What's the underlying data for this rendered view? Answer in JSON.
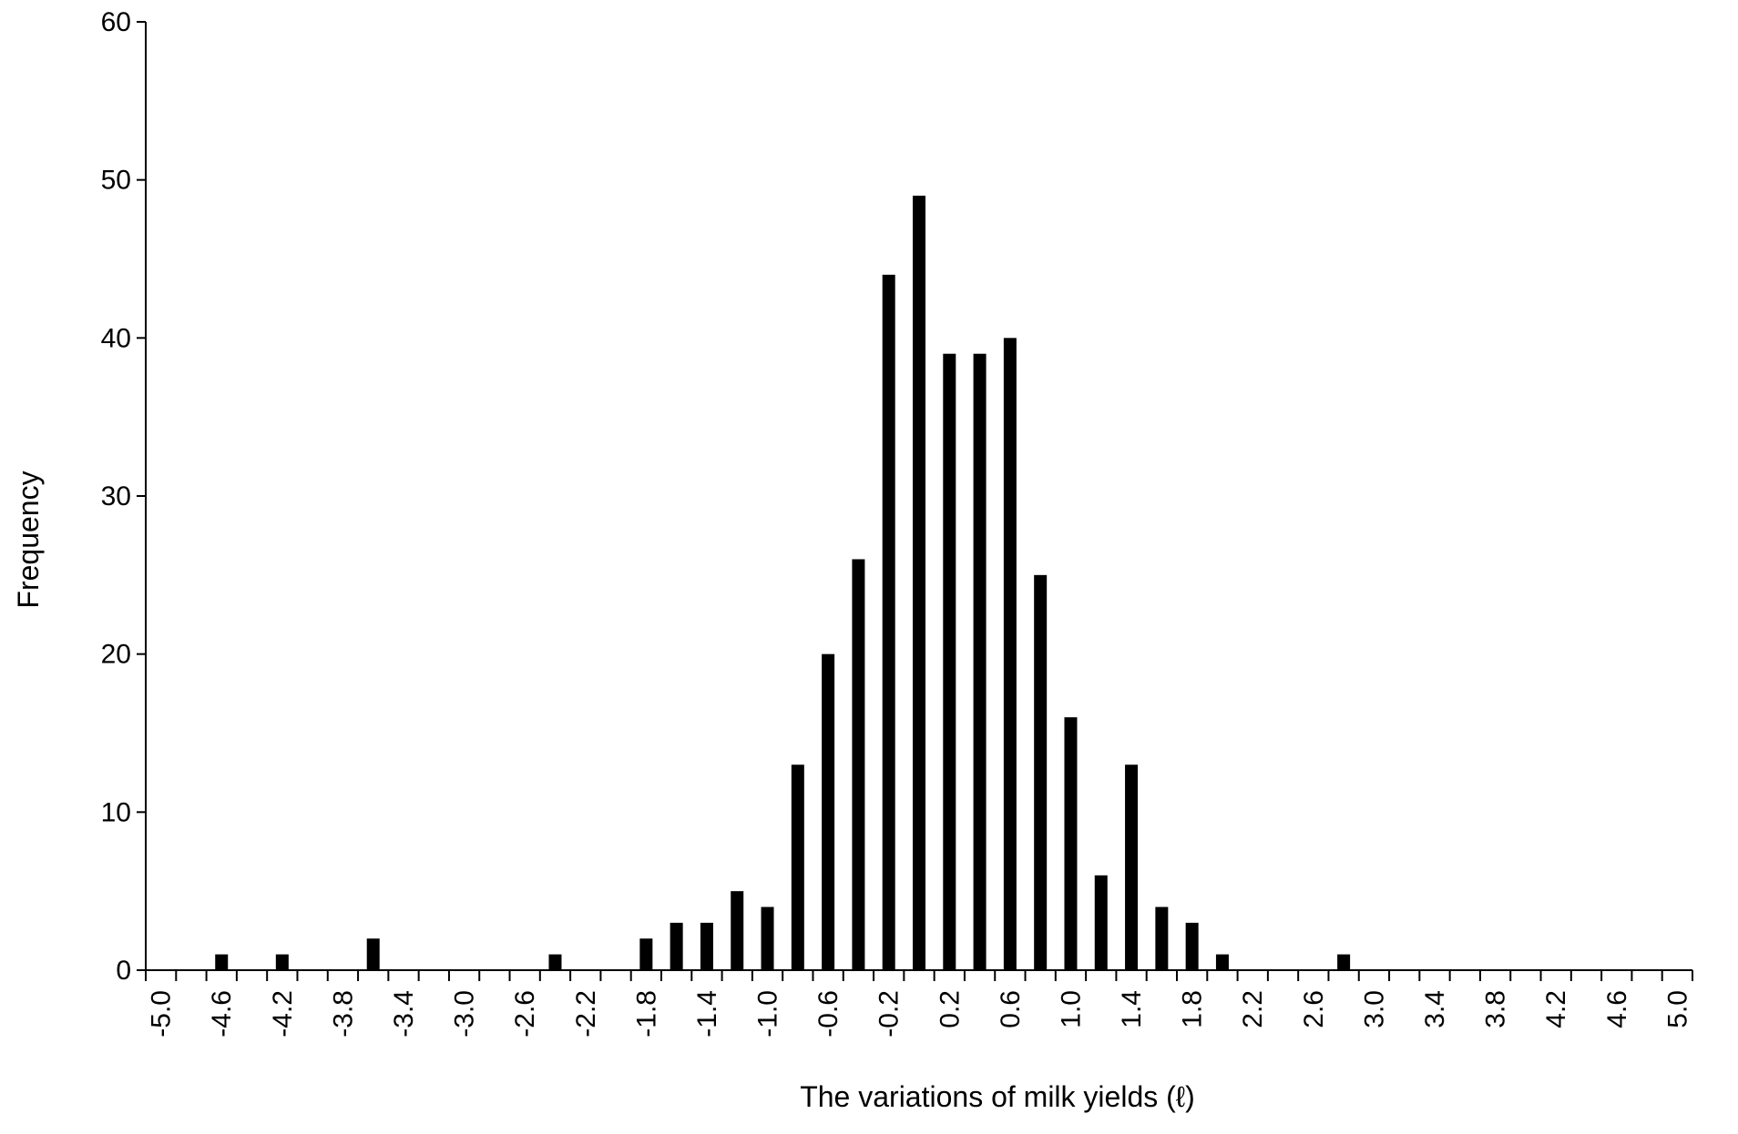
{
  "chart_data": {
    "type": "bar",
    "title": "",
    "xlabel": "The variations of milk yields (ℓ)",
    "ylabel": "Frequency",
    "ylim": [
      0,
      60
    ],
    "yticks": [
      "0",
      "10",
      "20",
      "30",
      "40",
      "50",
      "60"
    ],
    "categories": [
      "-5.0",
      "-4.8",
      "-4.6",
      "-4.4",
      "-4.2",
      "-4.0",
      "-3.8",
      "-3.6",
      "-3.4",
      "-3.2",
      "-3.0",
      "-2.8",
      "-2.6",
      "-2.4",
      "-2.2",
      "-2.0",
      "-1.8",
      "-1.6",
      "-1.4",
      "-1.2",
      "-1.0",
      "-0.8",
      "-0.6",
      "-0.4",
      "-0.2",
      "0.0",
      "0.2",
      "0.4",
      "0.6",
      "0.8",
      "1.0",
      "1.2",
      "1.4",
      "1.6",
      "1.8",
      "2.0",
      "2.2",
      "2.4",
      "2.6",
      "2.8",
      "3.0",
      "3.2",
      "3.4",
      "3.6",
      "3.8",
      "4.0",
      "4.2",
      "4.4",
      "4.6",
      "4.8",
      "5.0"
    ],
    "tick_labels": [
      "-5.0",
      "",
      "-4.6",
      "",
      "-4.2",
      "",
      "-3.8",
      "",
      "-3.4",
      "",
      "-3.0",
      "",
      "-2.6",
      "",
      "-2.2",
      "",
      "-1.8",
      "",
      "-1.4",
      "",
      "-1.0",
      "",
      "-0.6",
      "",
      "-0.2",
      "",
      "0.2",
      "",
      "0.6",
      "",
      "1.0",
      "",
      "1.4",
      "",
      "1.8",
      "",
      "2.2",
      "",
      "2.6",
      "",
      "3.0",
      "",
      "3.4",
      "",
      "3.8",
      "",
      "4.2",
      "",
      "4.6",
      "",
      "5.0"
    ],
    "values": [
      0,
      0,
      1,
      0,
      1,
      0,
      0,
      2,
      0,
      0,
      0,
      0,
      0,
      1,
      0,
      0,
      2,
      3,
      3,
      5,
      4,
      13,
      20,
      26,
      44,
      49,
      39,
      39,
      40,
      25,
      16,
      6,
      13,
      4,
      3,
      1,
      0,
      0,
      0,
      1,
      0,
      0,
      0,
      0,
      0,
      0,
      0,
      0,
      0,
      0,
      0
    ],
    "bar_color": "#000000",
    "grid": false,
    "legend": "none"
  }
}
